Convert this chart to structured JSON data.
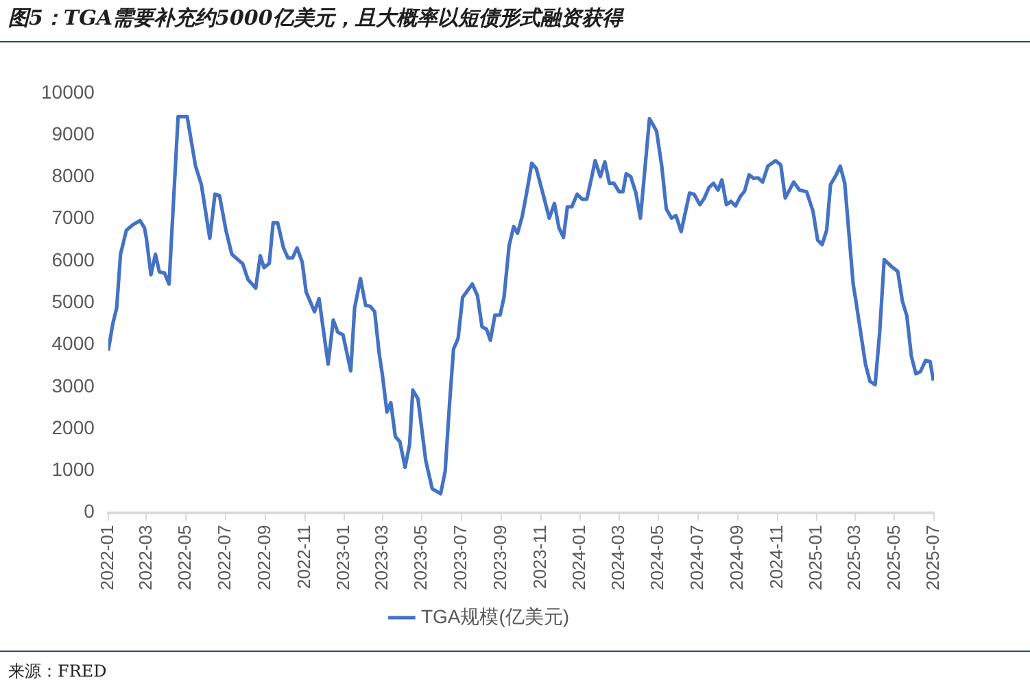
{
  "chart_data": {
    "type": "line",
    "title": "图5：TGA需要补充约5000亿美元，且大概率以短债形式融资获得",
    "annotations": [
      "来源：FRED"
    ],
    "legend": "bottom",
    "grid": false,
    "marker": "none",
    "line_style": "solid",
    "xlim": [
      "2022-01",
      "2025-07"
    ],
    "xticks": [
      "2022-01",
      "2022-03",
      "2022-05",
      "2022-07",
      "2022-09",
      "2022-11",
      "2023-01",
      "2023-03",
      "2023-05",
      "2023-07",
      "2023-09",
      "2023-11",
      "2024-01",
      "2024-03",
      "2024-05",
      "2024-07",
      "2024-09",
      "2024-11",
      "2025-01",
      "2025-03",
      "2025-05",
      "2025-07"
    ],
    "ylim": [
      0,
      10000
    ],
    "yticks": [
      0,
      1000,
      2000,
      3000,
      4000,
      5000,
      6000,
      7000,
      8000,
      9000,
      10000
    ],
    "series": [
      {
        "name": "TGA规模(亿美元)",
        "color": "#4472c4",
        "x": [
          "2022-01-01",
          "2022-01-08",
          "2022-01-14",
          "2022-01-20",
          "2022-01-29",
          "2022-02-08",
          "2022-02-19",
          "2022-02-26",
          "2022-03-01",
          "2022-03-08",
          "2022-03-15",
          "2022-03-21",
          "2022-03-29",
          "2022-04-05",
          "2022-04-19",
          "2022-05-03",
          "2022-05-16",
          "2022-05-25",
          "2022-06-07",
          "2022-06-15",
          "2022-06-22",
          "2022-07-02",
          "2022-07-11",
          "2022-07-28",
          "2022-08-05",
          "2022-08-17",
          "2022-08-24",
          "2022-08-30",
          "2022-09-07",
          "2022-09-13",
          "2022-09-20",
          "2022-09-29",
          "2022-10-06",
          "2022-10-13",
          "2022-10-20",
          "2022-10-28",
          "2022-11-03",
          "2022-11-16",
          "2022-11-23",
          "2022-12-07",
          "2022-12-15",
          "2022-12-22",
          "2022-12-30",
          "2023-01-11",
          "2023-01-17",
          "2023-01-26",
          "2023-02-03",
          "2023-02-10",
          "2023-02-17",
          "2023-02-24",
          "2023-03-01",
          "2023-03-08",
          "2023-03-14",
          "2023-03-21",
          "2023-03-28",
          "2023-04-05",
          "2023-04-12",
          "2023-04-17",
          "2023-04-25",
          "2023-05-07",
          "2023-05-17",
          "2023-05-30",
          "2023-06-06",
          "2023-06-13",
          "2023-06-19",
          "2023-06-26",
          "2023-07-03",
          "2023-07-18",
          "2023-07-26",
          "2023-08-02",
          "2023-08-09",
          "2023-08-15",
          "2023-08-22",
          "2023-08-30",
          "2023-09-05",
          "2023-09-13",
          "2023-09-20",
          "2023-09-26",
          "2023-10-03",
          "2023-10-10",
          "2023-10-18",
          "2023-10-25",
          "2023-11-05",
          "2023-11-14",
          "2023-11-22",
          "2023-11-29",
          "2023-12-06",
          "2023-12-12",
          "2023-12-19",
          "2023-12-27",
          "2024-01-04",
          "2024-01-11",
          "2024-01-17",
          "2024-01-24",
          "2024-02-01",
          "2024-02-08",
          "2024-02-15",
          "2024-02-22",
          "2024-03-01",
          "2024-03-07",
          "2024-03-12",
          "2024-03-19",
          "2024-03-27",
          "2024-04-03",
          "2024-04-17",
          "2024-04-22",
          "2024-04-28",
          "2024-05-06",
          "2024-05-13",
          "2024-05-21",
          "2024-05-28",
          "2024-06-05",
          "2024-06-18",
          "2024-06-25",
          "2024-07-04",
          "2024-07-11",
          "2024-07-18",
          "2024-07-25",
          "2024-08-01",
          "2024-08-07",
          "2024-08-14",
          "2024-08-21",
          "2024-08-28",
          "2024-09-05",
          "2024-09-11",
          "2024-09-18",
          "2024-09-25",
          "2024-10-02",
          "2024-10-09",
          "2024-10-17",
          "2024-10-29",
          "2024-11-06",
          "2024-11-13",
          "2024-11-26",
          "2024-12-05",
          "2024-12-16",
          "2024-12-26",
          "2025-01-02",
          "2025-01-09",
          "2025-01-16",
          "2025-01-22",
          "2025-01-30",
          "2025-02-06",
          "2025-02-13",
          "2025-02-26",
          "2025-03-02",
          "2025-03-17",
          "2025-03-24",
          "2025-04-01",
          "2025-04-08",
          "2025-04-15",
          "2025-04-26",
          "2025-05-06",
          "2025-05-13",
          "2025-05-20",
          "2025-05-27",
          "2025-06-03",
          "2025-06-10",
          "2025-06-18",
          "2025-06-25",
          "2025-06-30"
        ],
        "values": [
          3860,
          4500,
          4880,
          6160,
          6730,
          6860,
          6960,
          6790,
          6540,
          5670,
          6160,
          5740,
          5710,
          5450,
          9440,
          9440,
          8260,
          7820,
          6540,
          7590,
          7560,
          6730,
          6160,
          5930,
          5560,
          5350,
          6120,
          5840,
          5940,
          6910,
          6910,
          6310,
          6070,
          6070,
          6310,
          5970,
          5260,
          4790,
          5100,
          3540,
          4590,
          4300,
          4240,
          3380,
          4880,
          5580,
          4940,
          4920,
          4790,
          3790,
          3280,
          2400,
          2620,
          1810,
          1690,
          1080,
          1620,
          2920,
          2710,
          1240,
          570,
          450,
          980,
          2640,
          3900,
          4150,
          5130,
          5450,
          5170,
          4430,
          4370,
          4110,
          4710,
          4710,
          5130,
          6370,
          6820,
          6660,
          7050,
          7620,
          8330,
          8200,
          7560,
          7020,
          7370,
          6790,
          6560,
          7290,
          7290,
          7590,
          7470,
          7470,
          7880,
          8390,
          8010,
          8360,
          7850,
          7850,
          7650,
          7650,
          8080,
          8010,
          7620,
          7020,
          9390,
          9260,
          9090,
          8260,
          7240,
          7020,
          7080,
          6700,
          7620,
          7590,
          7340,
          7500,
          7750,
          7850,
          7690,
          7930,
          7340,
          7420,
          7310,
          7550,
          7660,
          8050,
          7970,
          7980,
          7880,
          8260,
          8390,
          8290,
          7500,
          7880,
          7690,
          7650,
          7180,
          6500,
          6390,
          6730,
          7820,
          8030,
          8260,
          7850,
          5450,
          5070,
          3540,
          3130,
          3050,
          4300,
          6030,
          5870,
          5750,
          5050,
          4690,
          3730,
          3310,
          3360,
          3630,
          3600,
          3150
        ]
      }
    ]
  }
}
